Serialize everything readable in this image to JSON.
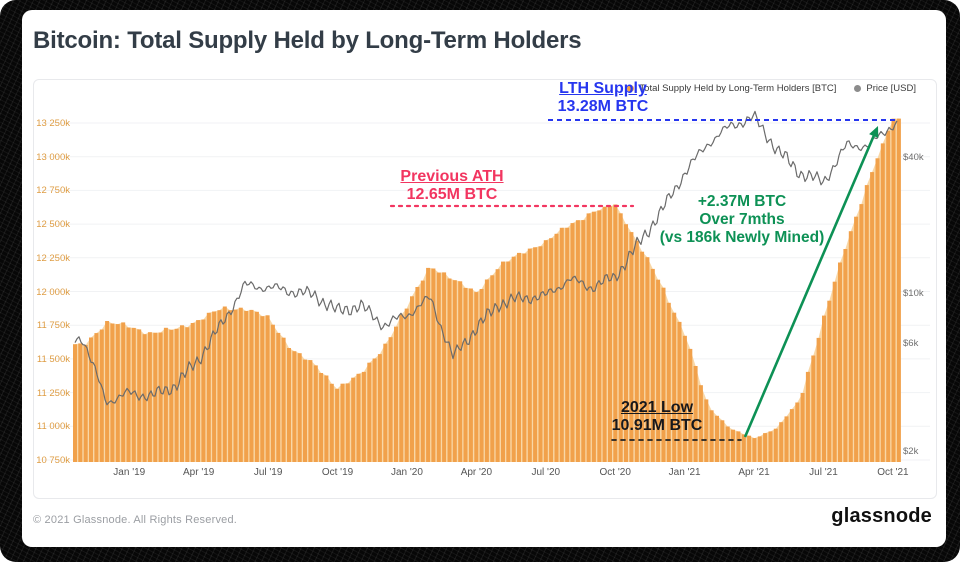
{
  "title": "Bitcoin: Total Supply Held by Long-Term Holders",
  "legend": {
    "items": [
      {
        "label": "Total Supply Held by Long-Term Holders [BTC]",
        "color": "#f5a43f"
      },
      {
        "label": "Price [USD]",
        "color": "#8c8c8c"
      }
    ]
  },
  "annotations": {
    "lth_supply": {
      "title": "LTH Supply",
      "value": "13.28M BTC",
      "color": "#2636ef"
    },
    "previous_ath": {
      "title": "Previous ATH",
      "value": "12.65M BTC",
      "color": "#f23560"
    },
    "low_2021": {
      "title": "2021 Low",
      "value": "10.91M BTC",
      "color": "#17181c"
    },
    "gain": {
      "line1": "+2.37M BTC",
      "line2": "Over 7mths",
      "line3": "(vs 186k Newly Mined)",
      "color": "#0d9155"
    }
  },
  "footer": {
    "copyright": "© 2021 Glassnode. All Rights Reserved.",
    "brand": "glassnode"
  },
  "chart_data": {
    "type": "bar",
    "title": "Bitcoin: Total Supply Held by Long-Term Holders",
    "months": [
      "Nov '18",
      "Dec '18",
      "Jan '19",
      "Feb '19",
      "Mar '19",
      "Apr '19",
      "May '19",
      "Jun '19",
      "Jul '19",
      "Aug '19",
      "Sep '19",
      "Oct '19",
      "Nov '19",
      "Dec '19",
      "Jan '20",
      "Feb '20",
      "Mar '20",
      "Apr '20",
      "May '20",
      "Jun '20",
      "Jul '20",
      "Aug '20",
      "Sep '20",
      "Oct '20",
      "Nov '20",
      "Dec '20",
      "Jan '21",
      "Feb '21",
      "Mar '21",
      "Apr '21",
      "May '21",
      "Jun '21",
      "Jul '21",
      "Aug '21",
      "Sep '21",
      "Oct '21"
    ],
    "series": [
      {
        "name": "Total Supply Held by Long-Term Holders [BTC]",
        "type": "bar",
        "unit": "thousand BTC",
        "color": "#f1a14b",
        "color_light": "#f9d7a6",
        "values_k": [
          11600,
          11770,
          11740,
          11690,
          11720,
          11790,
          11870,
          11880,
          11800,
          11580,
          11450,
          11290,
          11380,
          11590,
          11880,
          12200,
          12080,
          12000,
          12180,
          12300,
          12360,
          12500,
          12580,
          12650,
          12350,
          12050,
          11690,
          11150,
          10980,
          10910,
          10990,
          11200,
          11800,
          12350,
          12850,
          13280
        ]
      },
      {
        "name": "Price [USD]",
        "type": "line",
        "unit": "USD",
        "color": "#6b6b6b",
        "values_usd": [
          6300,
          3300,
          3600,
          3500,
          3900,
          5100,
          7300,
          10800,
          10600,
          10200,
          9800,
          8300,
          8800,
          7200,
          8000,
          9500,
          5200,
          7000,
          9000,
          9500,
          9700,
          11500,
          10600,
          11800,
          16500,
          23000,
          34000,
          46000,
          55000,
          60000,
          43000,
          34000,
          31000,
          45000,
          45000,
          56000
        ]
      }
    ],
    "y_left": {
      "labels": [
        "13 250k",
        "13 000k",
        "12 750k",
        "12 500k",
        "12 250k",
        "12 000k",
        "11 750k",
        "11 500k",
        "11 250k",
        "11 000k",
        "10 750k"
      ],
      "values_k": [
        13250,
        13000,
        12750,
        12500,
        12250,
        12000,
        11750,
        11500,
        11250,
        11000,
        10750
      ]
    },
    "y_right": {
      "labels": [
        "$40k",
        "$10k",
        "$6k",
        "$2k"
      ],
      "values_usd": [
        40000,
        10000,
        6000,
        2000
      ],
      "scale": "log"
    },
    "x_ticks": {
      "labels": [
        "Jan '19",
        "Apr '19",
        "Jul '19",
        "Oct '19",
        "Jan '20",
        "Apr '20",
        "Jul '20",
        "Oct '20",
        "Jan '21",
        "Apr '21",
        "Jul '21",
        "Oct '21"
      ],
      "month_indices": [
        2,
        5,
        8,
        11,
        14,
        17,
        20,
        23,
        26,
        29,
        32,
        35
      ]
    },
    "key_points": {
      "lth_supply_ath_oct21_btc": "13.28M",
      "previous_ath_oct20_btc": "12.65M",
      "low_apr21_btc": "10.91M",
      "gain_over_7mths_btc": "+2.37M",
      "newly_mined_same_period_btc": "186k"
    },
    "grid": "horizontal"
  }
}
